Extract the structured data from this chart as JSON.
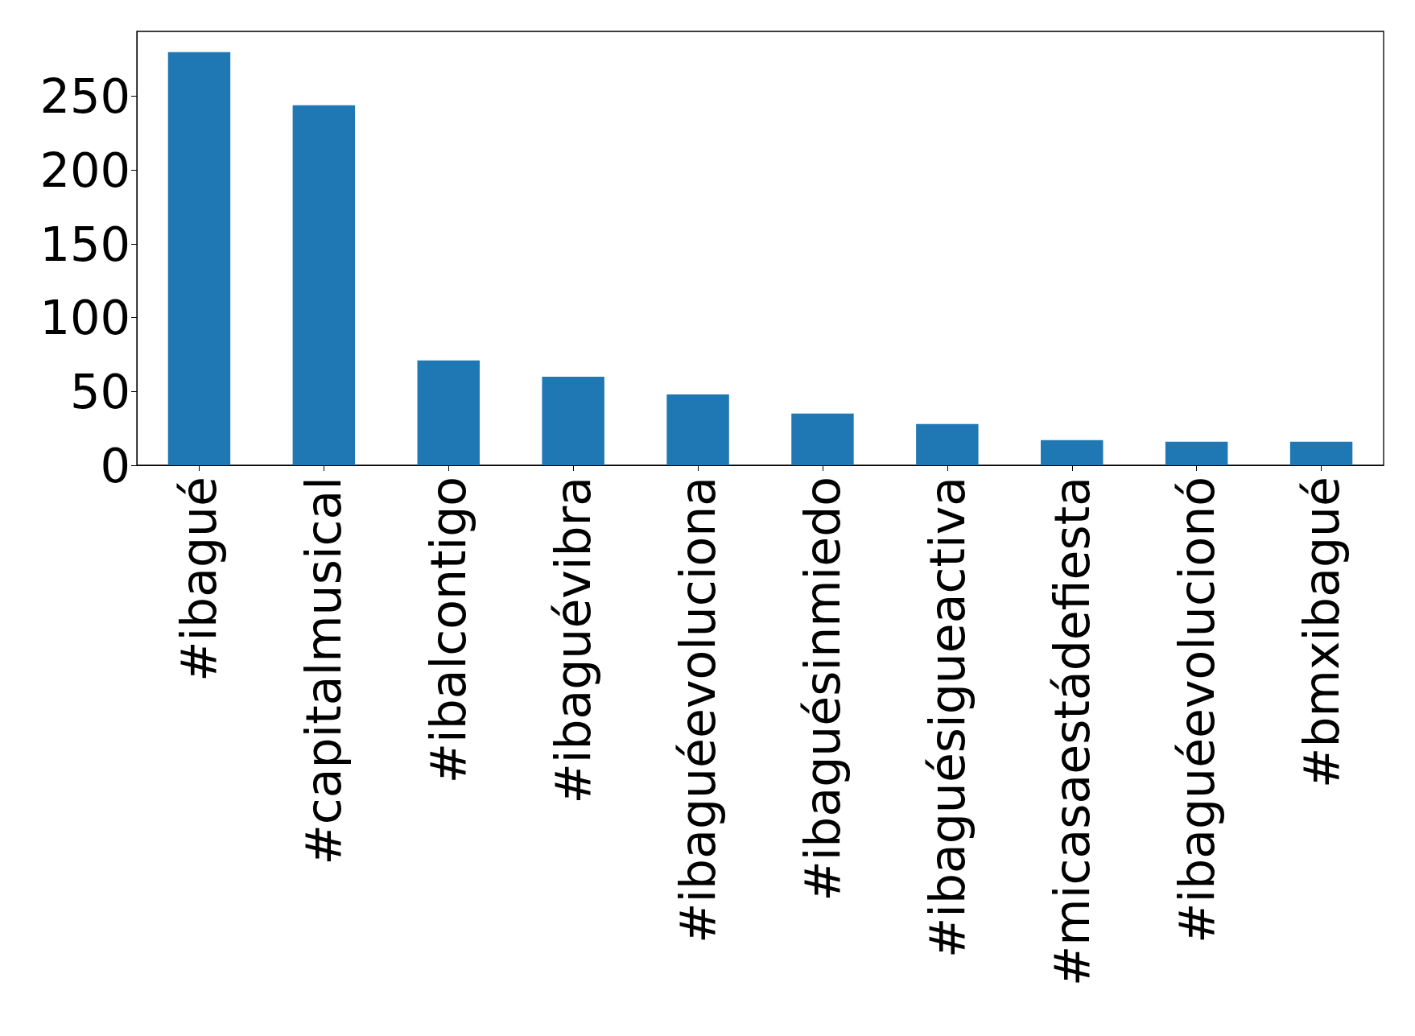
{
  "chart_data": {
    "type": "bar",
    "categories": [
      "#ibagué",
      "#capitalmusical",
      "#ibalcontigo",
      "#ibaguévibra",
      "#ibaguéevoluciona",
      "#ibaguésinmiedo",
      "#ibaguésigueactiva",
      "#micasaestádefiesta",
      "#ibaguéevolucionó",
      "#bmxibagué"
    ],
    "values": [
      280,
      244,
      71,
      60,
      48,
      35,
      28,
      17,
      16,
      16
    ],
    "color": "#1f77b4",
    "ylim": [
      0,
      294
    ],
    "yticks": [
      0,
      50,
      100,
      150,
      200,
      250
    ],
    "grid": false
  }
}
